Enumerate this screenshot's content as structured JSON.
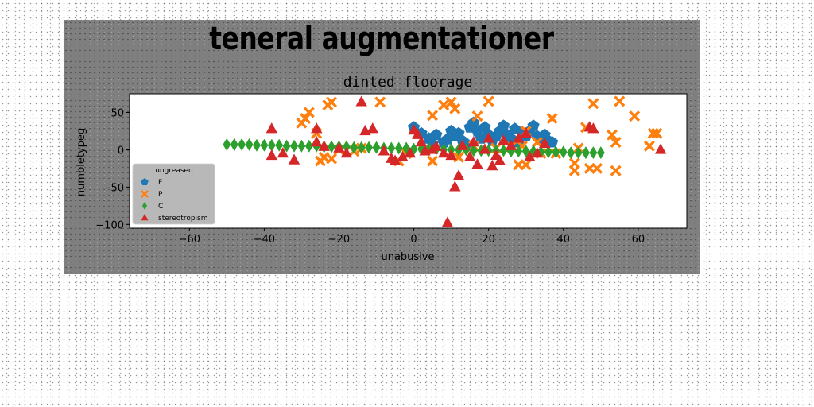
{
  "chart_data": {
    "type": "scatter",
    "suptitle": "teneral augmentationer",
    "title": "dinted floorage",
    "xlabel": "unabusive",
    "ylabel": "numbletypeg",
    "xlim": [
      -76,
      73
    ],
    "ylim": [
      -105,
      75
    ],
    "xticks": [
      -60,
      -40,
      -20,
      0,
      20,
      40,
      60
    ],
    "yticks": [
      -100,
      -50,
      0,
      50
    ],
    "grid": false,
    "legend": {
      "title": "ungreased",
      "position": "lower-left"
    },
    "series": [
      {
        "name": "F",
        "marker": "pentagon",
        "color": "#1f77b4",
        "points": [
          [
            0,
            30
          ],
          [
            2,
            22
          ],
          [
            4,
            15
          ],
          [
            6,
            20
          ],
          [
            8,
            10
          ],
          [
            10,
            25
          ],
          [
            11,
            18
          ],
          [
            12,
            22
          ],
          [
            13,
            12
          ],
          [
            14,
            8
          ],
          [
            15,
            30
          ],
          [
            16,
            36
          ],
          [
            17,
            25
          ],
          [
            18,
            15
          ],
          [
            19,
            30
          ],
          [
            20,
            20
          ],
          [
            21,
            12
          ],
          [
            22,
            18
          ],
          [
            23,
            25
          ],
          [
            24,
            32
          ],
          [
            25,
            20
          ],
          [
            26,
            15
          ],
          [
            27,
            28
          ],
          [
            28,
            10
          ],
          [
            29,
            22
          ],
          [
            30,
            18
          ],
          [
            31,
            25
          ],
          [
            32,
            32
          ],
          [
            33,
            18
          ],
          [
            34,
            14
          ],
          [
            35,
            20
          ],
          [
            36,
            12
          ],
          [
            37,
            10
          ],
          [
            5,
            8
          ],
          [
            9,
            14
          ]
        ]
      },
      {
        "name": "P",
        "marker": "x",
        "color": "#ff7f0e",
        "points": [
          [
            -30,
            36
          ],
          [
            -29,
            42
          ],
          [
            -28,
            50
          ],
          [
            -26,
            22
          ],
          [
            -25,
            -15
          ],
          [
            -24,
            -10
          ],
          [
            -23,
            60
          ],
          [
            -22,
            64
          ],
          [
            -22,
            -12
          ],
          [
            -20,
            0
          ],
          [
            -16,
            -2
          ],
          [
            -14,
            2
          ],
          [
            -9,
            64
          ],
          [
            -4,
            -15
          ],
          [
            -2,
            -5
          ],
          [
            5,
            -15
          ],
          [
            5,
            46
          ],
          [
            8,
            60
          ],
          [
            10,
            64
          ],
          [
            11,
            55
          ],
          [
            12,
            -10
          ],
          [
            16,
            5
          ],
          [
            17,
            45
          ],
          [
            20,
            65
          ],
          [
            22,
            2
          ],
          [
            26,
            4
          ],
          [
            28,
            -20
          ],
          [
            29,
            5
          ],
          [
            30,
            25
          ],
          [
            30,
            -20
          ],
          [
            33,
            10
          ],
          [
            34,
            -5
          ],
          [
            37,
            42
          ],
          [
            38,
            -5
          ],
          [
            43,
            -18
          ],
          [
            43,
            -28
          ],
          [
            44,
            2
          ],
          [
            46,
            30
          ],
          [
            47,
            -25
          ],
          [
            48,
            62
          ],
          [
            49,
            -25
          ],
          [
            53,
            20
          ],
          [
            54,
            10
          ],
          [
            54,
            -28
          ],
          [
            55,
            65
          ],
          [
            59,
            45
          ],
          [
            63,
            5
          ],
          [
            64,
            22
          ],
          [
            65,
            22
          ]
        ]
      },
      {
        "name": "C",
        "marker": "diamond",
        "color": "#2ca02c",
        "points": [
          [
            -50,
            7
          ],
          [
            -48,
            7
          ],
          [
            -46,
            7
          ],
          [
            -44,
            7
          ],
          [
            -42,
            6
          ],
          [
            -40,
            6
          ],
          [
            -38,
            6
          ],
          [
            -36,
            6
          ],
          [
            -34,
            5
          ],
          [
            -32,
            5
          ],
          [
            -30,
            5
          ],
          [
            -28,
            5
          ],
          [
            -26,
            5
          ],
          [
            -24,
            4
          ],
          [
            -22,
            4
          ],
          [
            -20,
            4
          ],
          [
            -18,
            4
          ],
          [
            -16,
            3
          ],
          [
            -14,
            3
          ],
          [
            -12,
            3
          ],
          [
            -10,
            3
          ],
          [
            -8,
            2
          ],
          [
            -6,
            2
          ],
          [
            -4,
            2
          ],
          [
            -2,
            2
          ],
          [
            0,
            1
          ],
          [
            2,
            1
          ],
          [
            4,
            1
          ],
          [
            6,
            1
          ],
          [
            8,
            0
          ],
          [
            10,
            0
          ],
          [
            12,
            0
          ],
          [
            14,
            0
          ],
          [
            16,
            -1
          ],
          [
            18,
            -1
          ],
          [
            20,
            -1
          ],
          [
            22,
            -1
          ],
          [
            24,
            -1
          ],
          [
            26,
            -2
          ],
          [
            28,
            -2
          ],
          [
            30,
            -2
          ],
          [
            32,
            -2
          ],
          [
            34,
            -3
          ],
          [
            36,
            -3
          ],
          [
            38,
            -3
          ],
          [
            40,
            -3
          ],
          [
            42,
            -4
          ],
          [
            44,
            -4
          ],
          [
            46,
            -4
          ],
          [
            48,
            -4
          ],
          [
            50,
            -4
          ]
        ]
      },
      {
        "name": "stereotropism",
        "marker": "triangle",
        "color": "#d62728",
        "points": [
          [
            -38,
            28
          ],
          [
            -38,
            -8
          ],
          [
            -35,
            -5
          ],
          [
            -32,
            -14
          ],
          [
            -26,
            28
          ],
          [
            -26,
            10
          ],
          [
            -24,
            4
          ],
          [
            -20,
            2
          ],
          [
            -18,
            -5
          ],
          [
            -14,
            64
          ],
          [
            -13,
            25
          ],
          [
            -11,
            28
          ],
          [
            -8,
            -2
          ],
          [
            -6,
            -12
          ],
          [
            -5,
            -15
          ],
          [
            -3,
            -10
          ],
          [
            -1,
            -5
          ],
          [
            0,
            26
          ],
          [
            1,
            20
          ],
          [
            2,
            10
          ],
          [
            3,
            -2
          ],
          [
            5,
            0
          ],
          [
            6,
            4
          ],
          [
            8,
            -5
          ],
          [
            9,
            -98
          ],
          [
            10,
            -8
          ],
          [
            11,
            -50
          ],
          [
            12,
            -35
          ],
          [
            13,
            5
          ],
          [
            15,
            -10
          ],
          [
            16,
            10
          ],
          [
            17,
            -20
          ],
          [
            19,
            0
          ],
          [
            20,
            15
          ],
          [
            21,
            -22
          ],
          [
            22,
            -8
          ],
          [
            23,
            -15
          ],
          [
            24,
            12
          ],
          [
            26,
            5
          ],
          [
            28,
            15
          ],
          [
            30,
            22
          ],
          [
            31,
            -10
          ],
          [
            33,
            -5
          ],
          [
            35,
            8
          ],
          [
            47,
            30
          ],
          [
            48,
            28
          ],
          [
            66,
            0
          ]
        ]
      }
    ]
  }
}
